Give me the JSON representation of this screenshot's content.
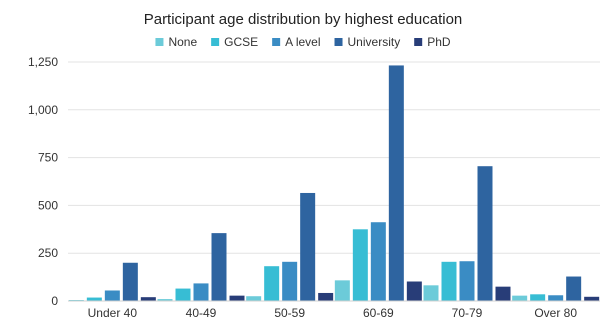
{
  "chart_data": {
    "type": "bar",
    "title": "Participant age distribution by highest education",
    "xlabel": "",
    "ylabel": "",
    "ylim": [
      0,
      1250
    ],
    "yticks": [
      0,
      250,
      500,
      750,
      1000,
      1250
    ],
    "ytick_labels": [
      "0",
      "250",
      "500",
      "750",
      "1,000",
      "1,250"
    ],
    "grid": true,
    "legend_position": "top-center",
    "categories": [
      "Under 40",
      "40-49",
      "50-59",
      "60-69",
      "70-79",
      "Over 80"
    ],
    "series": [
      {
        "name": "None",
        "color": "#6ccbd9",
        "values": [
          5,
          10,
          25,
          108,
          82,
          28
        ]
      },
      {
        "name": "GCSE",
        "color": "#37bdd4",
        "values": [
          18,
          65,
          182,
          375,
          205,
          35
        ]
      },
      {
        "name": "A level",
        "color": "#3a8cc4",
        "values": [
          55,
          92,
          205,
          412,
          208,
          30
        ]
      },
      {
        "name": "University",
        "color": "#2e64a0",
        "values": [
          200,
          355,
          565,
          1232,
          705,
          128
        ]
      },
      {
        "name": "PhD",
        "color": "#283d78",
        "values": [
          20,
          28,
          42,
          102,
          75,
          22
        ]
      }
    ]
  }
}
